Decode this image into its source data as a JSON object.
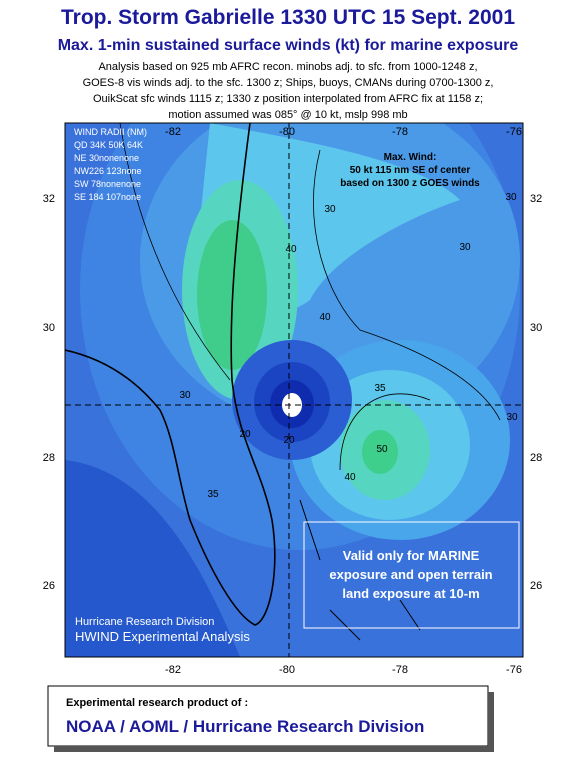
{
  "header": {
    "title": "Trop. Storm Gabrielle 1330 UTC 15 Sept. 2001",
    "subtitle": "Max. 1-min sustained surface winds (kt) for marine exposure",
    "notes": [
      "Analysis based on 925 mb AFRC recon. minobs adj. to sfc. from 1000-1248 z,",
      "GOES-8 vis winds adj. to the sfc. 1300 z; Ships, buoys, CMANs during 0700-1300 z,",
      "OuikScat sfc winds 1115 z; 1330 z  position interpolated from AFRC fix at 1158 z;",
      "motion assumed was 085° @ 10 kt, mslp 998 mb"
    ]
  },
  "map": {
    "lon_ticks": [
      "-82",
      "-80",
      "-78",
      "-76"
    ],
    "lat_ticks": [
      "32",
      "30",
      "28",
      "26"
    ],
    "wind_radii": [
      "WIND RADII (NM)",
      "QD 34K 50K 64K",
      "NE 30nonenone",
      "NW226 123none",
      "SW 78nonenone",
      "SE 184 107none"
    ],
    "max_wind": [
      "Max. Wind:",
      "50 kt  115 nm SE of center",
      "based on 1300 z GOES winds"
    ],
    "valid_note": [
      "Valid only for MARINE",
      "exposure and open terrain",
      "land exposure at 10-m"
    ],
    "credit": "Hurricane Research Division",
    "product": "HWIND Experimental Analysis",
    "contour_labels": [
      "30",
      "35",
      "40",
      "30",
      "35",
      "30",
      "40",
      "50",
      "20",
      "20",
      "30",
      "30",
      "40"
    ]
  },
  "footer": {
    "line1": "Experimental research product of :",
    "line2": "NOAA / AOML / Hurricane Research Division"
  }
}
